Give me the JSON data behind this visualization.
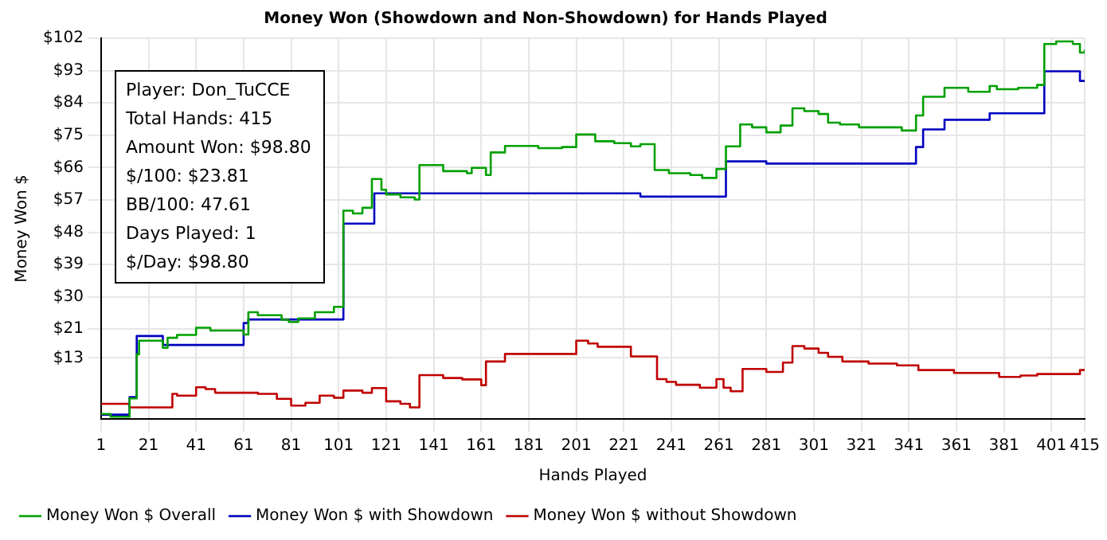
{
  "chart_data": {
    "type": "step",
    "title": "Money Won (Showdown and Non-Showdown) for Hands Played",
    "xlabel": "Hands Played",
    "ylabel": "Money Won $",
    "xlim": [
      1,
      415
    ],
    "xticks": [
      1,
      21,
      41,
      61,
      81,
      101,
      121,
      141,
      161,
      181,
      201,
      221,
      241,
      261,
      281,
      301,
      321,
      341,
      361,
      381,
      401,
      415
    ],
    "ylim": [
      -4,
      102
    ],
    "yticks": [
      {
        "value": 13,
        "label": "$13"
      },
      {
        "value": 21,
        "label": "$21"
      },
      {
        "value": 30,
        "label": "$30"
      },
      {
        "value": 39,
        "label": "$39"
      },
      {
        "value": 48,
        "label": "$48"
      },
      {
        "value": 57,
        "label": "$57"
      },
      {
        "value": 66,
        "label": "$66"
      },
      {
        "value": 75,
        "label": "$75"
      },
      {
        "value": 84,
        "label": "$84"
      },
      {
        "value": 93,
        "label": "$93"
      },
      {
        "value": 102,
        "label": "$102"
      }
    ],
    "grid": true,
    "legend": "bottom",
    "marker": "none",
    "line_style": "solid",
    "annotations": [
      "Player: Don_TuCCE",
      "Total Hands: 415",
      "Amount Won: $98.80",
      "$/100: $23.81",
      "BB/100: 47.61",
      "Days Played: 1",
      "$/Day: $98.80"
    ],
    "series": [
      {
        "name": "Money Won $ Overall",
        "color": "#00a000",
        "x": [
          1,
          5,
          13,
          16,
          17,
          27,
          29,
          33,
          41,
          47,
          61,
          63,
          67,
          77,
          80,
          84,
          91,
          99,
          103,
          107,
          111,
          115,
          119,
          121,
          127,
          133,
          135,
          145,
          155,
          157,
          163,
          165,
          171,
          185,
          195,
          201,
          209,
          217,
          224,
          228,
          234,
          240,
          249,
          254,
          260,
          264,
          270,
          275,
          281,
          287,
          292,
          297,
          303,
          307,
          312,
          320,
          338,
          344,
          347,
          356,
          366,
          375,
          378,
          387,
          395,
          398,
          403,
          410,
          413,
          415
        ],
        "values": [
          -2.6,
          -3.4,
          1.7,
          14,
          17.8,
          15.8,
          18.6,
          19.4,
          21.4,
          20.6,
          19.5,
          25.7,
          24.9,
          23.6,
          23,
          24,
          25.7,
          27.2,
          54,
          53.2,
          54.8,
          62.8,
          59.8,
          58.5,
          57.7,
          57.1,
          66.7,
          65,
          64.4,
          65.9,
          63.9,
          70.2,
          72,
          71.4,
          71.7,
          75.2,
          73.3,
          72.8,
          71.9,
          72.5,
          65.3,
          64.4,
          63.9,
          63.1,
          65.6,
          71.9,
          78,
          77.2,
          75.8,
          77.7,
          82.5,
          81.7,
          80.9,
          78.5,
          78,
          77.2,
          76.3,
          80.5,
          85.7,
          88.2,
          87.1,
          88.7,
          87.8,
          88.2,
          89,
          100.4,
          101.1,
          100.4,
          98,
          98.8
        ]
      },
      {
        "name": "Money Won $ with Showdown",
        "color": "#0000c0",
        "x": [
          1,
          13,
          16,
          27,
          61,
          63,
          103,
          116,
          228,
          264,
          281,
          344,
          347,
          356,
          375,
          398,
          413,
          415
        ],
        "values": [
          -2.8,
          2.1,
          19.1,
          16.6,
          22.7,
          23.7,
          50.4,
          58.8,
          57.9,
          67.7,
          67.1,
          71.7,
          76.6,
          79.3,
          81.1,
          92.8,
          90.1,
          90.1
        ]
      },
      {
        "name": "Money Won $ without Showdown",
        "color": "#c00000",
        "x": [
          1,
          13,
          31,
          33,
          41,
          45,
          49,
          67,
          75,
          81,
          87,
          93,
          99,
          103,
          111,
          115,
          121,
          127,
          131,
          135,
          145,
          153,
          161,
          163,
          171,
          201,
          206,
          210,
          224,
          235,
          239,
          243,
          253,
          260,
          263,
          266,
          271,
          281,
          288,
          292,
          297,
          303,
          307,
          313,
          324,
          336,
          345,
          360,
          379,
          388,
          395,
          413,
          415
        ],
        "values": [
          0.2,
          -0.8,
          3,
          2.5,
          4.8,
          4.3,
          3.3,
          3,
          1.6,
          -0.3,
          0.5,
          2.5,
          1.9,
          3.9,
          3.3,
          4.6,
          0.9,
          0.2,
          -0.8,
          8.2,
          7.4,
          7,
          5.4,
          12,
          14.1,
          17.8,
          17,
          16.1,
          13.4,
          7.1,
          6.3,
          5.5,
          4.7,
          7.1,
          4.7,
          3.7,
          9.9,
          9.1,
          11.7,
          16.3,
          15.6,
          14.4,
          13.3,
          12,
          11.4,
          10.9,
          9.6,
          8.8,
          7.7,
          8.1,
          8.5,
          9.6,
          9.6
        ]
      }
    ]
  }
}
